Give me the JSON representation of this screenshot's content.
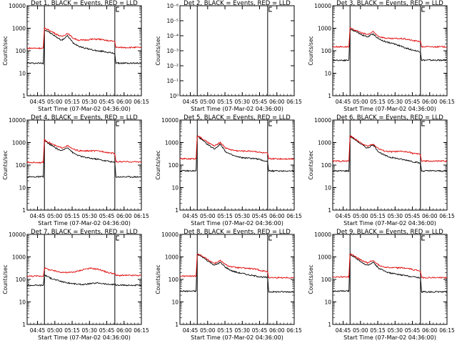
{
  "colors": {
    "events": "#000000",
    "lld": "#e00000",
    "axes": "#000000",
    "background": "#ffffff"
  },
  "x_tick_labels": [
    "04:45",
    "05:00",
    "05:15",
    "05:30",
    "05:45",
    "06:00",
    "06:15"
  ],
  "x_label": "Start Time (07-Mar-02 04:36:00)",
  "y_label": "Counts/sec",
  "y_tick_labels_log": [
    "1",
    "10",
    "100",
    "1000",
    "10000"
  ],
  "chart_data": [
    {
      "type": "line",
      "title": "Det 1, BLACK = Events, RED = LLD",
      "yscale": "log",
      "ylim": [
        1,
        10000
      ],
      "x_minutes": [
        0,
        99
      ],
      "valid_range": [
        15,
        76
      ],
      "series": [
        {
          "name": "Events",
          "x": [
            0,
            14,
            15,
            18,
            25,
            30,
            35,
            40,
            45,
            50,
            55,
            62,
            66,
            70,
            76,
            77,
            85,
            99
          ],
          "values": [
            28,
            28,
            850,
            720,
            420,
            290,
            460,
            220,
            160,
            130,
            115,
            95,
            95,
            85,
            75,
            28,
            28,
            28
          ]
        },
        {
          "name": "LLD",
          "x": [
            0,
            14,
            15,
            18,
            25,
            30,
            35,
            40,
            45,
            50,
            55,
            62,
            66,
            70,
            76,
            77,
            85,
            99
          ],
          "values": [
            130,
            130,
            1000,
            870,
            560,
            420,
            600,
            360,
            290,
            300,
            320,
            330,
            300,
            280,
            260,
            140,
            140,
            140
          ]
        }
      ]
    },
    {
      "type": "line",
      "title": "Det 2, BLACK = Events, RED = LLD",
      "yscale": "log",
      "y_tick_labels": [
        "10⁰",
        "10⁻¹",
        "10⁻²",
        "10⁻³",
        "10⁻⁴",
        "10⁻⁵",
        "10⁻⁶"
      ],
      "x_minutes": [
        0,
        99
      ],
      "valid_range": [
        15,
        76
      ],
      "series": []
    },
    {
      "type": "line",
      "title": "Det 3, BLACK = Events, RED = LLD",
      "yscale": "log",
      "ylim": [
        1,
        10000
      ],
      "x_minutes": [
        0,
        99
      ],
      "valid_range": [
        15,
        76
      ],
      "series": [
        {
          "name": "Events",
          "x": [
            0,
            14,
            15,
            20,
            25,
            30,
            35,
            40,
            45,
            50,
            55,
            62,
            66,
            70,
            76,
            77,
            85,
            99
          ],
          "values": [
            38,
            38,
            900,
            720,
            520,
            410,
            560,
            330,
            260,
            220,
            190,
            140,
            120,
            105,
            90,
            38,
            38,
            38
          ]
        },
        {
          "name": "LLD",
          "x": [
            0,
            14,
            15,
            20,
            25,
            30,
            35,
            40,
            45,
            50,
            55,
            62,
            66,
            70,
            76,
            77,
            85,
            99
          ],
          "values": [
            150,
            150,
            1000,
            800,
            620,
            520,
            690,
            430,
            370,
            340,
            350,
            340,
            310,
            280,
            260,
            150,
            150,
            150
          ]
        }
      ]
    },
    {
      "type": "line",
      "title": "Det 4, BLACK = Events, RED = LLD",
      "yscale": "log",
      "ylim": [
        1,
        10000
      ],
      "x_minutes": [
        0,
        99
      ],
      "valid_range": [
        15,
        76
      ],
      "series": [
        {
          "name": "Events",
          "x": [
            0,
            14,
            15,
            20,
            25,
            30,
            35,
            40,
            45,
            50,
            55,
            62,
            66,
            70,
            76,
            77,
            85,
            99
          ],
          "values": [
            30,
            30,
            1200,
            820,
            560,
            420,
            620,
            340,
            260,
            220,
            200,
            180,
            160,
            150,
            130,
            30,
            30,
            30
          ]
        },
        {
          "name": "LLD",
          "x": [
            0,
            14,
            15,
            20,
            25,
            30,
            35,
            40,
            45,
            50,
            55,
            62,
            66,
            70,
            76,
            77,
            85,
            99
          ],
          "values": [
            130,
            130,
            1300,
            950,
            700,
            580,
            720,
            500,
            430,
            420,
            430,
            420,
            400,
            360,
            330,
            140,
            140,
            140
          ]
        }
      ]
    },
    {
      "type": "line",
      "title": "Det 5, BLACK = Events, RED = LLD",
      "yscale": "log",
      "ylim": [
        1,
        10000
      ],
      "x_minutes": [
        0,
        99
      ],
      "valid_range": [
        15,
        76
      ],
      "series": [
        {
          "name": "Events",
          "x": [
            0,
            14,
            15,
            20,
            25,
            30,
            35,
            40,
            45,
            50,
            55,
            62,
            66,
            70,
            76,
            77,
            85,
            99
          ],
          "values": [
            55,
            55,
            2000,
            1200,
            750,
            520,
            850,
            380,
            280,
            230,
            210,
            200,
            190,
            170,
            140,
            55,
            55,
            55
          ]
        },
        {
          "name": "LLD",
          "x": [
            0,
            14,
            15,
            20,
            25,
            30,
            35,
            40,
            45,
            50,
            55,
            62,
            66,
            70,
            76,
            77,
            85,
            99
          ],
          "values": [
            190,
            190,
            2100,
            1400,
            950,
            700,
            1000,
            560,
            470,
            430,
            420,
            420,
            400,
            360,
            330,
            190,
            190,
            190
          ]
        }
      ]
    },
    {
      "type": "line",
      "title": "Det 6, BLACK = Events, RED = LLD",
      "yscale": "log",
      "ylim": [
        1,
        10000
      ],
      "x_minutes": [
        0,
        99
      ],
      "valid_range": [
        15,
        76
      ],
      "series": [
        {
          "name": "Events",
          "x": [
            0,
            14,
            15,
            20,
            25,
            30,
            35,
            40,
            45,
            50,
            55,
            62,
            66,
            70,
            76,
            77,
            85,
            99
          ],
          "values": [
            55,
            55,
            1900,
            1300,
            820,
            560,
            780,
            380,
            270,
            220,
            200,
            170,
            160,
            140,
            120,
            55,
            55,
            55
          ]
        },
        {
          "name": "LLD",
          "x": [
            0,
            14,
            15,
            20,
            25,
            30,
            35,
            40,
            45,
            50,
            55,
            62,
            66,
            70,
            76,
            77,
            85,
            99
          ],
          "values": [
            150,
            150,
            2000,
            1400,
            900,
            680,
            860,
            520,
            420,
            390,
            400,
            400,
            370,
            330,
            300,
            150,
            150,
            150
          ]
        }
      ]
    },
    {
      "type": "line",
      "title": "Det 7, BLACK = Events, RED = LLD",
      "yscale": "log",
      "ylim": [
        1,
        10000
      ],
      "x_minutes": [
        0,
        99
      ],
      "valid_range": [
        15,
        76
      ],
      "series": [
        {
          "name": "Events",
          "x": [
            0,
            14,
            15,
            20,
            25,
            30,
            35,
            40,
            45,
            50,
            55,
            62,
            66,
            70,
            76,
            77,
            85,
            99
          ],
          "values": [
            55,
            55,
            160,
            115,
            95,
            80,
            70,
            65,
            60,
            60,
            65,
            70,
            65,
            60,
            60,
            55,
            55,
            55
          ]
        },
        {
          "name": "LLD",
          "x": [
            0,
            14,
            15,
            20,
            25,
            30,
            35,
            40,
            45,
            50,
            55,
            62,
            66,
            70,
            76,
            77,
            85,
            99
          ],
          "values": [
            140,
            140,
            320,
            260,
            230,
            210,
            200,
            210,
            240,
            290,
            310,
            280,
            240,
            200,
            180,
            150,
            150,
            150
          ]
        }
      ]
    },
    {
      "type": "line",
      "title": "Det 8, BLACK = Events, RED = LLD",
      "yscale": "log",
      "ylim": [
        1,
        10000
      ],
      "x_minutes": [
        0,
        99
      ],
      "valid_range": [
        15,
        76
      ],
      "series": [
        {
          "name": "Events",
          "x": [
            0,
            14,
            15,
            20,
            25,
            30,
            35,
            40,
            45,
            50,
            55,
            62,
            66,
            70,
            76,
            77,
            85,
            99
          ],
          "values": [
            30,
            30,
            1300,
            950,
            620,
            430,
            560,
            330,
            240,
            200,
            180,
            150,
            140,
            130,
            120,
            28,
            28,
            28
          ]
        },
        {
          "name": "LLD",
          "x": [
            0,
            14,
            15,
            20,
            25,
            30,
            35,
            40,
            45,
            50,
            55,
            62,
            66,
            70,
            76,
            77,
            85,
            99
          ],
          "values": [
            140,
            140,
            1400,
            1050,
            700,
            520,
            680,
            430,
            360,
            330,
            320,
            300,
            280,
            250,
            220,
            120,
            120,
            120
          ]
        }
      ]
    },
    {
      "type": "line",
      "title": "Det 9, BLACK = Events, RED = LLD",
      "yscale": "log",
      "ylim": [
        1,
        10000
      ],
      "x_minutes": [
        0,
        99
      ],
      "valid_range": [
        15,
        76
      ],
      "series": [
        {
          "name": "Events",
          "x": [
            0,
            14,
            15,
            20,
            25,
            30,
            35,
            40,
            45,
            50,
            55,
            62,
            66,
            70,
            76,
            77,
            85,
            99
          ],
          "values": [
            30,
            30,
            1300,
            900,
            560,
            420,
            560,
            310,
            230,
            190,
            170,
            150,
            140,
            130,
            120,
            28,
            28,
            28
          ]
        },
        {
          "name": "LLD",
          "x": [
            0,
            14,
            15,
            20,
            25,
            30,
            35,
            40,
            45,
            50,
            55,
            62,
            66,
            70,
            76,
            77,
            85,
            99
          ],
          "values": [
            130,
            130,
            1400,
            1000,
            700,
            540,
            700,
            420,
            360,
            330,
            330,
            320,
            300,
            270,
            240,
            120,
            120,
            120
          ]
        }
      ]
    }
  ]
}
